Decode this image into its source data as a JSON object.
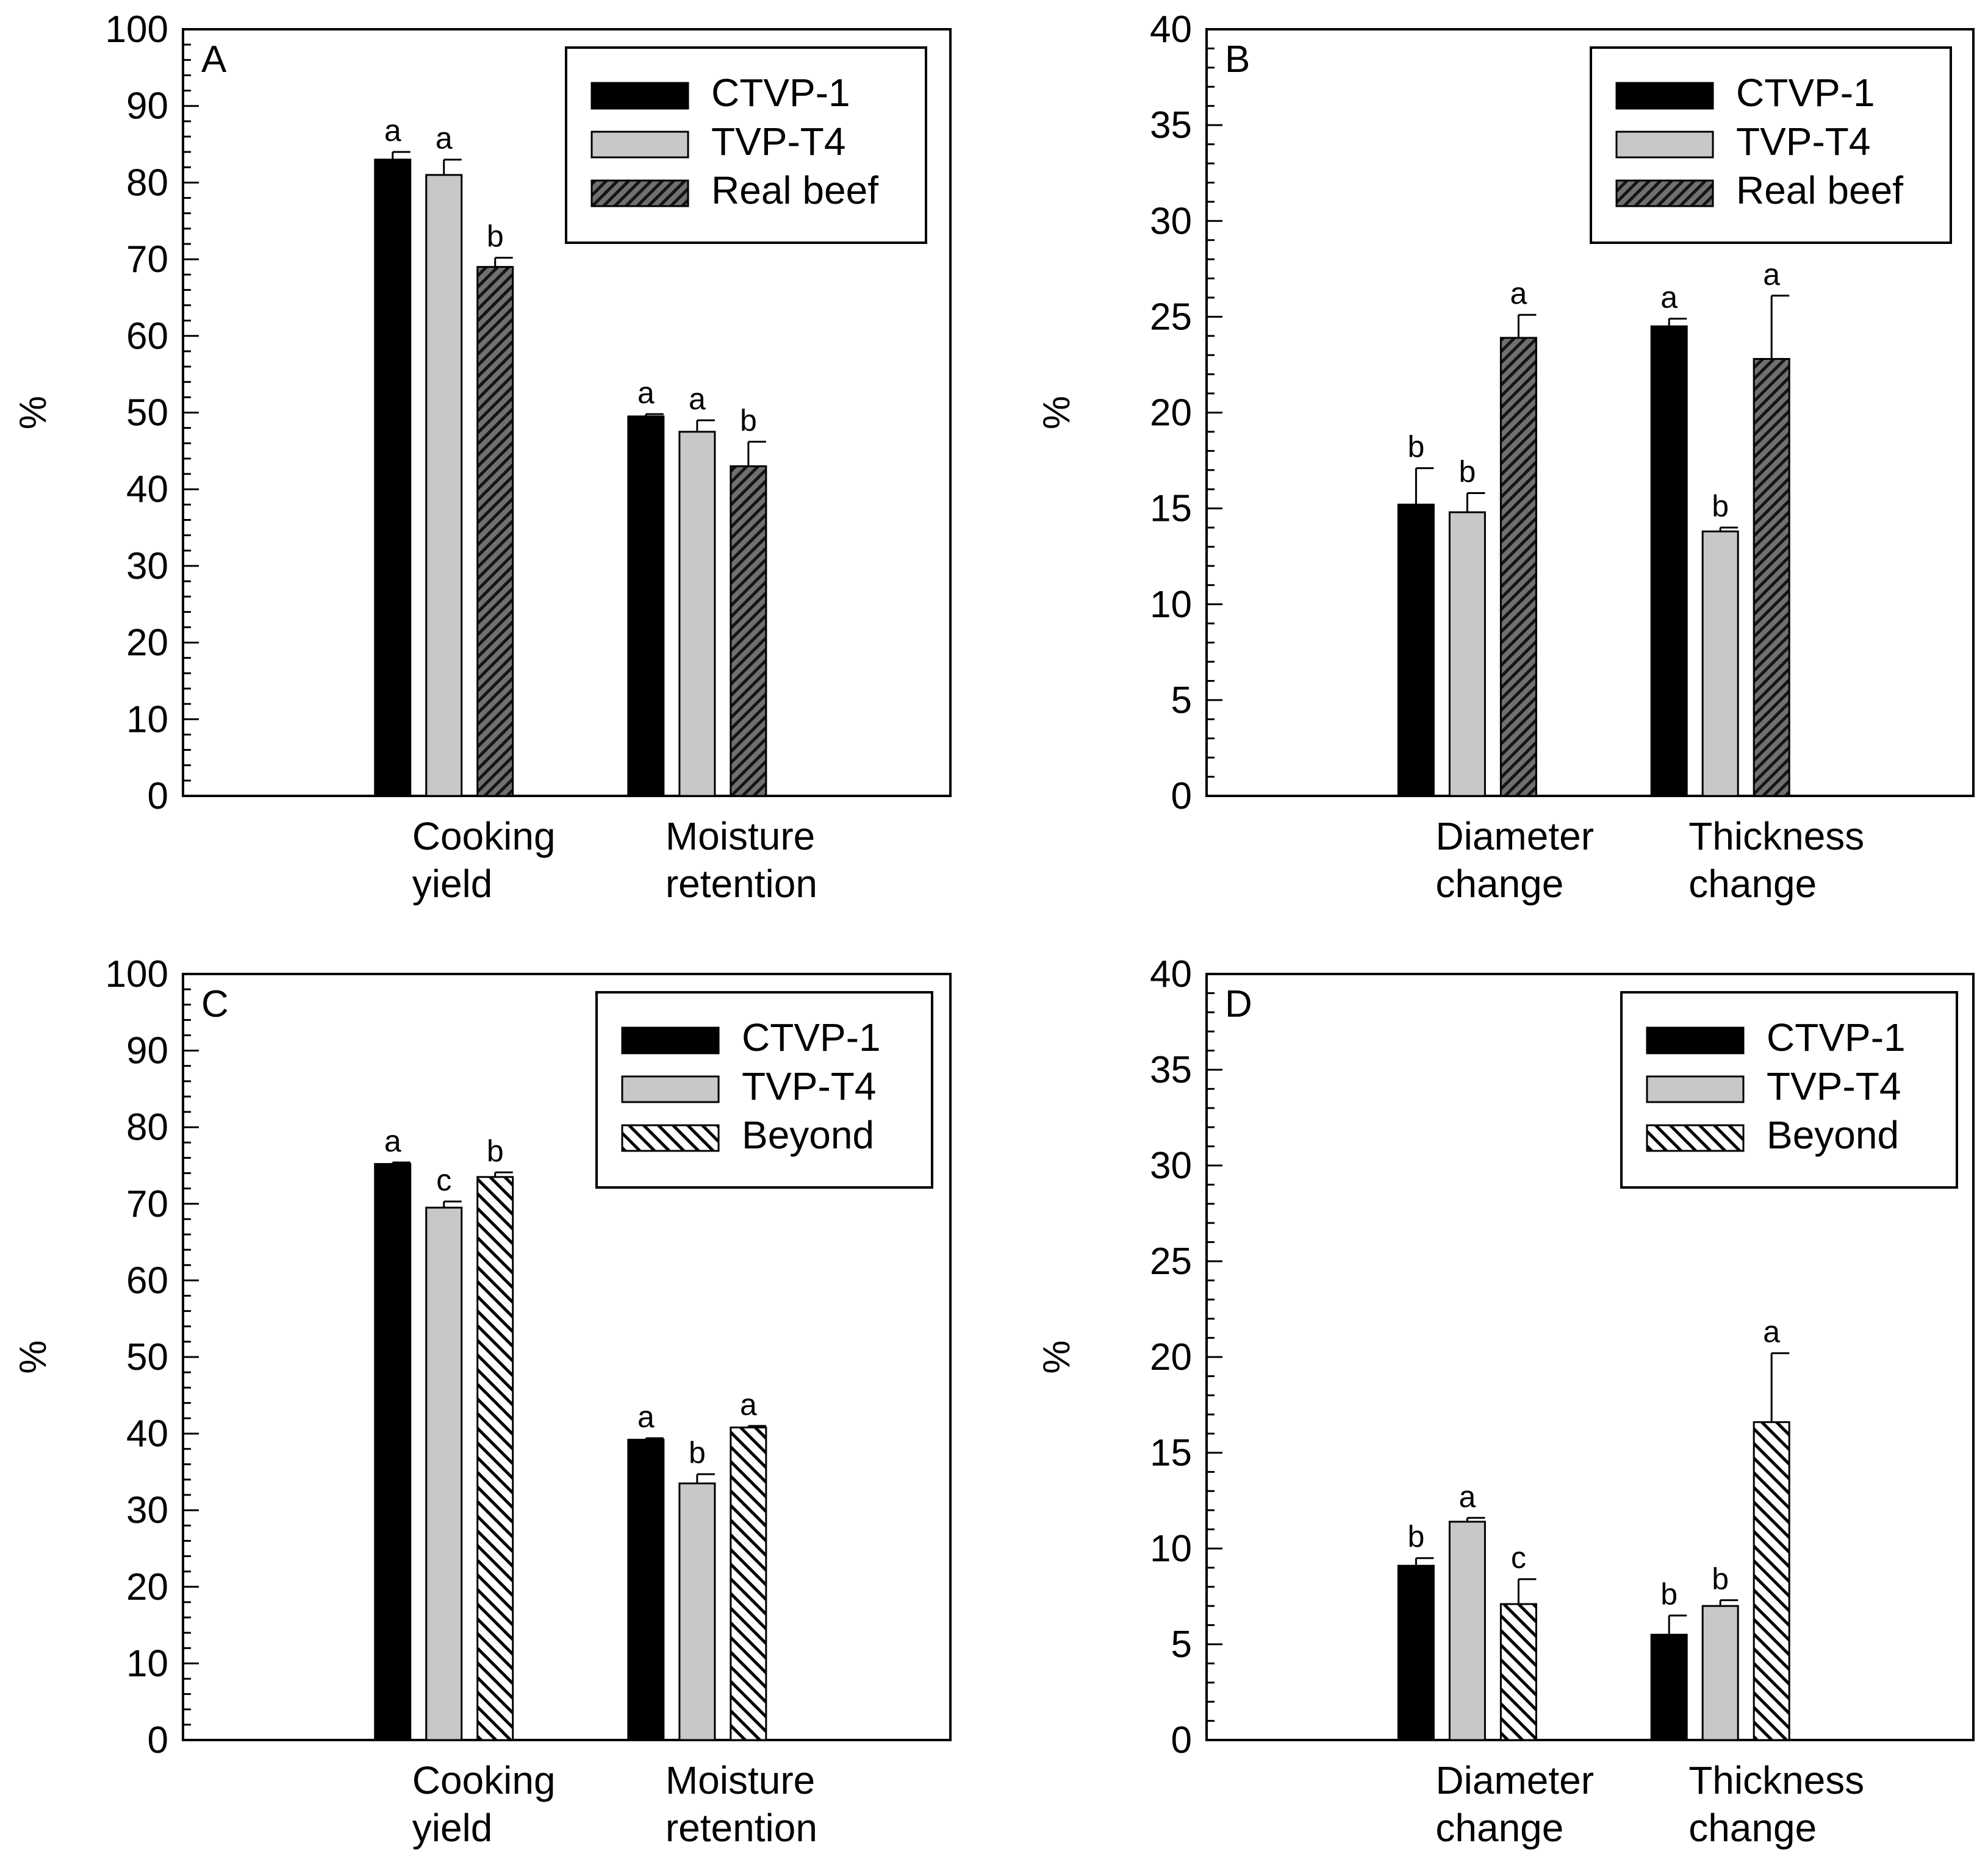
{
  "figure": {
    "panel_count": 4
  },
  "chart_data": [
    {
      "type": "bar",
      "panel_label": "A",
      "ylabel": "%",
      "ylim": [
        0,
        100
      ],
      "yticks": [
        0,
        10,
        20,
        30,
        40,
        50,
        60,
        70,
        80,
        90,
        100
      ],
      "categories": [
        [
          "Cooking",
          "yield"
        ],
        [
          "Moisture",
          "retention"
        ]
      ],
      "series": [
        {
          "name": "CTVP-1",
          "style": "solid-black",
          "values": [
            83,
            49.5
          ],
          "errors": [
            1,
            0.3
          ],
          "letters": [
            "a",
            "a"
          ]
        },
        {
          "name": "TVP-T4",
          "style": "solid-gray",
          "values": [
            81,
            47.5
          ],
          "errors": [
            2,
            1.5
          ],
          "letters": [
            "a",
            "a"
          ]
        },
        {
          "name": "Real beef",
          "style": "dense-hatch",
          "values": [
            69,
            43
          ],
          "errors": [
            1.2,
            3.2
          ],
          "letters": [
            "b",
            "b"
          ]
        }
      ],
      "legend_position": "top-right"
    },
    {
      "type": "bar",
      "panel_label": "B",
      "ylabel": "%",
      "ylim": [
        0,
        40
      ],
      "yticks": [
        0,
        5,
        10,
        15,
        20,
        25,
        30,
        35,
        40
      ],
      "categories": [
        [
          "Diameter",
          "change"
        ],
        [
          "Thickness",
          "change"
        ]
      ],
      "series": [
        {
          "name": "CTVP-1",
          "style": "solid-black",
          "values": [
            15.2,
            24.5
          ],
          "errors": [
            1.9,
            0.4
          ],
          "letters": [
            "b",
            "a"
          ]
        },
        {
          "name": "TVP-T4",
          "style": "solid-gray",
          "values": [
            14.8,
            13.8
          ],
          "errors": [
            1,
            0.2
          ],
          "letters": [
            "b",
            "b"
          ]
        },
        {
          "name": "Real beef",
          "style": "dense-hatch",
          "values": [
            23.9,
            22.8
          ],
          "errors": [
            1.2,
            3.3
          ],
          "letters": [
            "a",
            "a"
          ]
        }
      ],
      "legend_position": "top-right"
    },
    {
      "type": "bar",
      "panel_label": "C",
      "ylabel": "%",
      "ylim": [
        0,
        100
      ],
      "yticks": [
        0,
        10,
        20,
        30,
        40,
        50,
        60,
        70,
        80,
        90,
        100
      ],
      "categories": [
        [
          "Cooking",
          "yield"
        ],
        [
          "Moisture",
          "retention"
        ]
      ],
      "series": [
        {
          "name": "CTVP-1",
          "style": "solid-black",
          "values": [
            75.2,
            39.2
          ],
          "errors": [
            0.2,
            0.2
          ],
          "letters": [
            "a",
            "a"
          ]
        },
        {
          "name": "TVP-T4",
          "style": "solid-gray",
          "values": [
            69.5,
            33.5
          ],
          "errors": [
            0.8,
            1.2
          ],
          "letters": [
            "c",
            "b"
          ]
        },
        {
          "name": "Beyond",
          "style": "light-hatch",
          "values": [
            73.5,
            40.8
          ],
          "errors": [
            0.6,
            0.2
          ],
          "letters": [
            "b",
            "a"
          ]
        }
      ],
      "legend_position": "top-right"
    },
    {
      "type": "bar",
      "panel_label": "D",
      "ylabel": "%",
      "ylim": [
        0,
        40
      ],
      "yticks": [
        0,
        5,
        10,
        15,
        20,
        25,
        30,
        35,
        40
      ],
      "categories": [
        [
          "Diameter",
          "change"
        ],
        [
          "Thickness",
          "change"
        ]
      ],
      "series": [
        {
          "name": "CTVP-1",
          "style": "solid-black",
          "values": [
            9.1,
            5.5
          ],
          "errors": [
            0.4,
            1
          ],
          "letters": [
            "b",
            "b"
          ]
        },
        {
          "name": "TVP-T4",
          "style": "solid-gray",
          "values": [
            11.4,
            7
          ],
          "errors": [
            0.2,
            0.3
          ],
          "letters": [
            "a",
            "b"
          ]
        },
        {
          "name": "Beyond",
          "style": "light-hatch",
          "values": [
            7.1,
            16.6
          ],
          "errors": [
            1.3,
            3.6
          ],
          "letters": [
            "c",
            "a"
          ]
        }
      ],
      "legend_position": "top-right"
    }
  ]
}
